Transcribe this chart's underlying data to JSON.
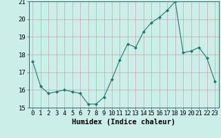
{
  "x": [
    0,
    1,
    2,
    3,
    4,
    5,
    6,
    7,
    8,
    9,
    10,
    11,
    12,
    13,
    14,
    15,
    16,
    17,
    18,
    19,
    20,
    21,
    22,
    23
  ],
  "y": [
    17.6,
    16.2,
    15.8,
    15.9,
    16.0,
    15.9,
    15.8,
    15.2,
    15.2,
    15.6,
    16.6,
    17.7,
    18.6,
    18.4,
    19.3,
    19.8,
    20.1,
    20.5,
    21.0,
    18.1,
    18.2,
    18.4,
    17.8,
    16.5
  ],
  "line_color": "#1a7a6e",
  "marker": "D",
  "marker_size": 2,
  "bg_color": "#cceee8",
  "grid_color": "#c0a8a8",
  "xlabel": "Humidex (Indice chaleur)",
  "ylim": [
    15,
    21
  ],
  "xlim": [
    -0.5,
    23.5
  ],
  "yticks": [
    15,
    16,
    17,
    18,
    19,
    20,
    21
  ],
  "xticks": [
    0,
    1,
    2,
    3,
    4,
    5,
    6,
    7,
    8,
    9,
    10,
    11,
    12,
    13,
    14,
    15,
    16,
    17,
    18,
    19,
    20,
    21,
    22,
    23
  ],
  "xlabel_fontsize": 7.5,
  "tick_fontsize": 6.5
}
